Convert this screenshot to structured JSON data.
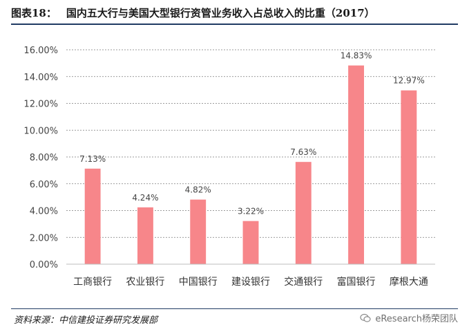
{
  "figure": {
    "label": "图表18：",
    "title": "国内五大行与美国大型银行资管业务收入占总收入的比重（2017）",
    "source": "资料来源：中信建投证券研究发展部",
    "watermark": "eResearch杨荣团队"
  },
  "chart_data": {
    "type": "bar",
    "title": "国内五大行与美国大型银行资管业务收入占总收入的比重（2017）",
    "categories": [
      "工商银行",
      "农业银行",
      "中国银行",
      "建设银行",
      "交通银行",
      "富国银行",
      "摩根大通"
    ],
    "values": [
      7.13,
      4.24,
      4.82,
      3.22,
      7.63,
      14.83,
      12.97
    ],
    "value_labels": [
      "7.13%",
      "4.24%",
      "4.82%",
      "3.22%",
      "7.63%",
      "14.83%",
      "12.97%"
    ],
    "y_ticks": [
      "0.00%",
      "2.00%",
      "4.00%",
      "6.00%",
      "8.00%",
      "10.00%",
      "12.00%",
      "14.00%",
      "16.00%"
    ],
    "ylim": [
      0,
      16
    ],
    "xlabel": "",
    "ylabel": "",
    "grid": true,
    "bar_color": "#f7868a"
  }
}
